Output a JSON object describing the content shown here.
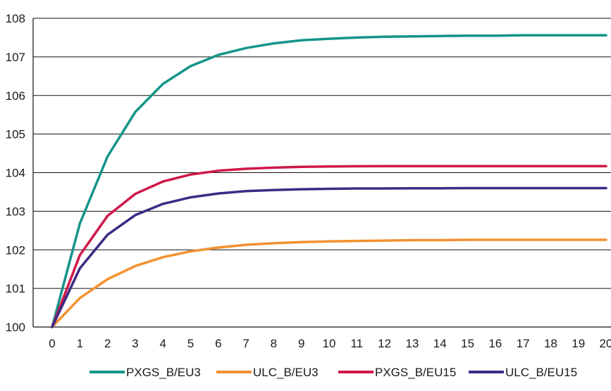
{
  "chart_data": {
    "type": "line",
    "x": [
      0,
      1,
      2,
      3,
      4,
      5,
      6,
      7,
      8,
      9,
      10,
      11,
      12,
      13,
      14,
      15,
      16,
      17,
      18,
      19,
      20
    ],
    "xticks": [
      "0",
      "1",
      "2",
      "3",
      "4",
      "5",
      "6",
      "7",
      "8",
      "9",
      "10",
      "11",
      "12",
      "13",
      "14",
      "15",
      "16",
      "17",
      "18",
      "19",
      "20"
    ],
    "ylim": [
      100,
      108
    ],
    "yticks": [
      "100",
      "101",
      "102",
      "103",
      "104",
      "105",
      "106",
      "107",
      "108"
    ],
    "grid": true,
    "legend_position": "bottom",
    "series": [
      {
        "name": "PXGS_B/EU3",
        "color": "#14948a",
        "values": [
          100,
          102.68,
          104.42,
          105.57,
          106.3,
          106.76,
          107.05,
          107.23,
          107.35,
          107.43,
          107.47,
          107.5,
          107.52,
          107.53,
          107.54,
          107.55,
          107.55,
          107.56,
          107.56,
          107.56,
          107.56
        ]
      },
      {
        "name": "ULC_B/EU3",
        "color": "#f39130",
        "values": [
          100,
          100.75,
          101.24,
          101.58,
          101.81,
          101.96,
          102.06,
          102.13,
          102.17,
          102.2,
          102.22,
          102.23,
          102.24,
          102.25,
          102.25,
          102.26,
          102.26,
          102.26,
          102.26,
          102.26,
          102.26
        ]
      },
      {
        "name": "PXGS_B/EU15",
        "color": "#d0184a",
        "values": [
          100,
          101.86,
          102.88,
          103.45,
          103.77,
          103.95,
          104.05,
          104.1,
          104.13,
          104.15,
          104.16,
          104.165,
          104.17,
          104.17,
          104.17,
          104.17,
          104.17,
          104.17,
          104.17,
          104.17,
          104.17
        ]
      },
      {
        "name": "ULC_B/EU15",
        "color": "#3e2a84",
        "values": [
          100,
          101.52,
          102.39,
          102.9,
          103.19,
          103.36,
          103.46,
          103.52,
          103.55,
          103.57,
          103.58,
          103.59,
          103.59,
          103.595,
          103.595,
          103.6,
          103.6,
          103.6,
          103.6,
          103.6,
          103.6
        ]
      }
    ]
  }
}
